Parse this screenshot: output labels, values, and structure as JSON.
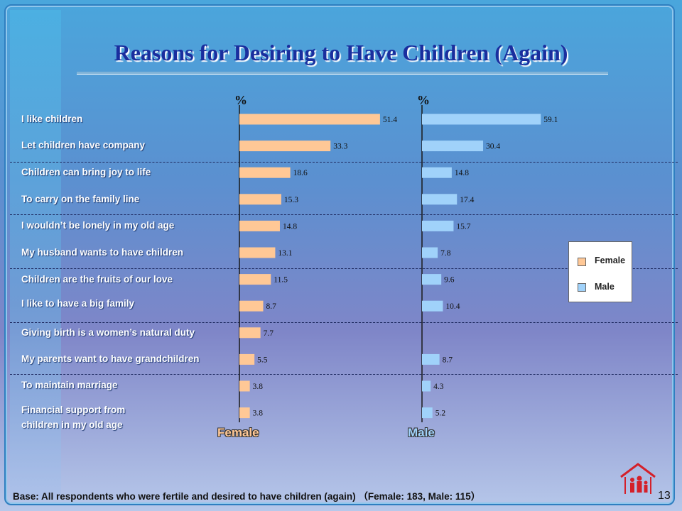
{
  "title": "Reasons for Desiring to Have Children (Again)",
  "footnote": "Base: All respondents who were fertile and desired to have children (again) （Female: 183, Male: 115）",
  "page_number": "13",
  "colors": {
    "female": "#ffc896",
    "male": "#a0d2fa",
    "title": "#1a2e9e"
  },
  "chart_data": {
    "type": "bar",
    "orientation": "horizontal",
    "unit_label": "%",
    "categories": [
      "I like children",
      "Let children have company",
      "Children can bring joy to life",
      "To carry on the family line",
      "I wouldn’t be lonely in my old age",
      "My husband wants to have children",
      "Children are the fruits of our love",
      "I like to have a big family",
      "Giving birth is a women’s natural duty",
      "My parents want to have grandchildren",
      "To maintain marriage",
      "Financial support from children in my old age"
    ],
    "series": [
      {
        "name": "Female",
        "values": [
          51.4,
          33.3,
          18.6,
          15.3,
          14.8,
          13.1,
          11.5,
          8.7,
          7.7,
          5.5,
          3.8,
          3.8
        ]
      },
      {
        "name": "Male",
        "values": [
          59.1,
          30.4,
          14.8,
          17.4,
          15.7,
          7.8,
          9.6,
          10.4,
          null,
          8.7,
          4.3,
          5.2
        ]
      }
    ],
    "panel_labels": [
      "Female",
      "Male"
    ],
    "legend": {
      "position": "right",
      "entries": [
        "Female",
        "Male"
      ]
    }
  }
}
